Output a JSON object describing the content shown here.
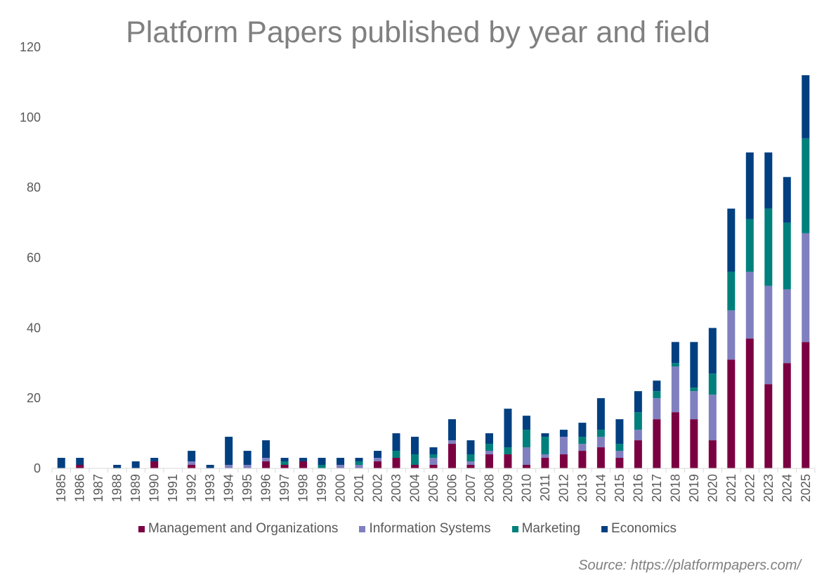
{
  "chart_data": {
    "type": "bar",
    "stacked": true,
    "title": "Platform Papers published by year and field",
    "xlabel": "",
    "ylabel": "",
    "ylim": [
      0,
      120
    ],
    "yticks": [
      0,
      20,
      40,
      60,
      80,
      100,
      120
    ],
    "categories": [
      "1985",
      "1986",
      "1987",
      "1988",
      "1989",
      "1990",
      "1991",
      "1992",
      "1993",
      "1994",
      "1995",
      "1996",
      "1997",
      "1998",
      "1999",
      "2000",
      "2001",
      "2002",
      "2003",
      "2004",
      "2005",
      "2006",
      "2007",
      "2008",
      "2009",
      "2010",
      "2011",
      "2012",
      "2013",
      "2014",
      "2015",
      "2016",
      "2017",
      "2018",
      "2019",
      "2020",
      "2021",
      "2022",
      "2023",
      "2024",
      "2025"
    ],
    "series": [
      {
        "name": "Management and Organizations",
        "color": "#7B0041",
        "values": [
          0,
          1,
          0,
          0,
          0,
          2,
          0,
          1,
          0,
          0,
          0,
          2,
          1,
          2,
          0,
          0,
          0,
          2,
          3,
          1,
          1,
          7,
          1,
          4,
          4,
          1,
          3,
          4,
          5,
          6,
          3,
          8,
          14,
          16,
          14,
          8,
          31,
          37,
          24,
          30,
          36
        ]
      },
      {
        "name": "Information Systems",
        "color": "#8080C0",
        "values": [
          0,
          0,
          0,
          0,
          0,
          0,
          0,
          1,
          0,
          1,
          1,
          1,
          0,
          0,
          0,
          1,
          1,
          1,
          0,
          0,
          2,
          1,
          1,
          1,
          0,
          5,
          1,
          5,
          2,
          3,
          2,
          3,
          6,
          13,
          8,
          13,
          14,
          19,
          28,
          21,
          31
        ]
      },
      {
        "name": "Marketing",
        "color": "#00807C",
        "values": [
          0,
          0,
          0,
          0,
          0,
          0,
          0,
          0,
          0,
          0,
          0,
          0,
          1,
          0,
          1,
          0,
          1,
          0,
          2,
          3,
          1,
          0,
          2,
          2,
          2,
          5,
          5,
          0,
          2,
          2,
          2,
          5,
          2,
          1,
          1,
          6,
          11,
          15,
          22,
          19,
          27
        ]
      },
      {
        "name": "Economics",
        "color": "#023F80",
        "values": [
          3,
          2,
          0,
          1,
          2,
          1,
          0,
          3,
          1,
          8,
          4,
          5,
          1,
          1,
          2,
          2,
          1,
          2,
          5,
          5,
          2,
          6,
          4,
          3,
          11,
          4,
          1,
          2,
          4,
          9,
          7,
          6,
          3,
          6,
          13,
          13,
          18,
          19,
          16,
          13,
          18
        ]
      }
    ],
    "legend_position": "bottom",
    "grid": false
  },
  "source": "Source: https://platformpapers.com/"
}
